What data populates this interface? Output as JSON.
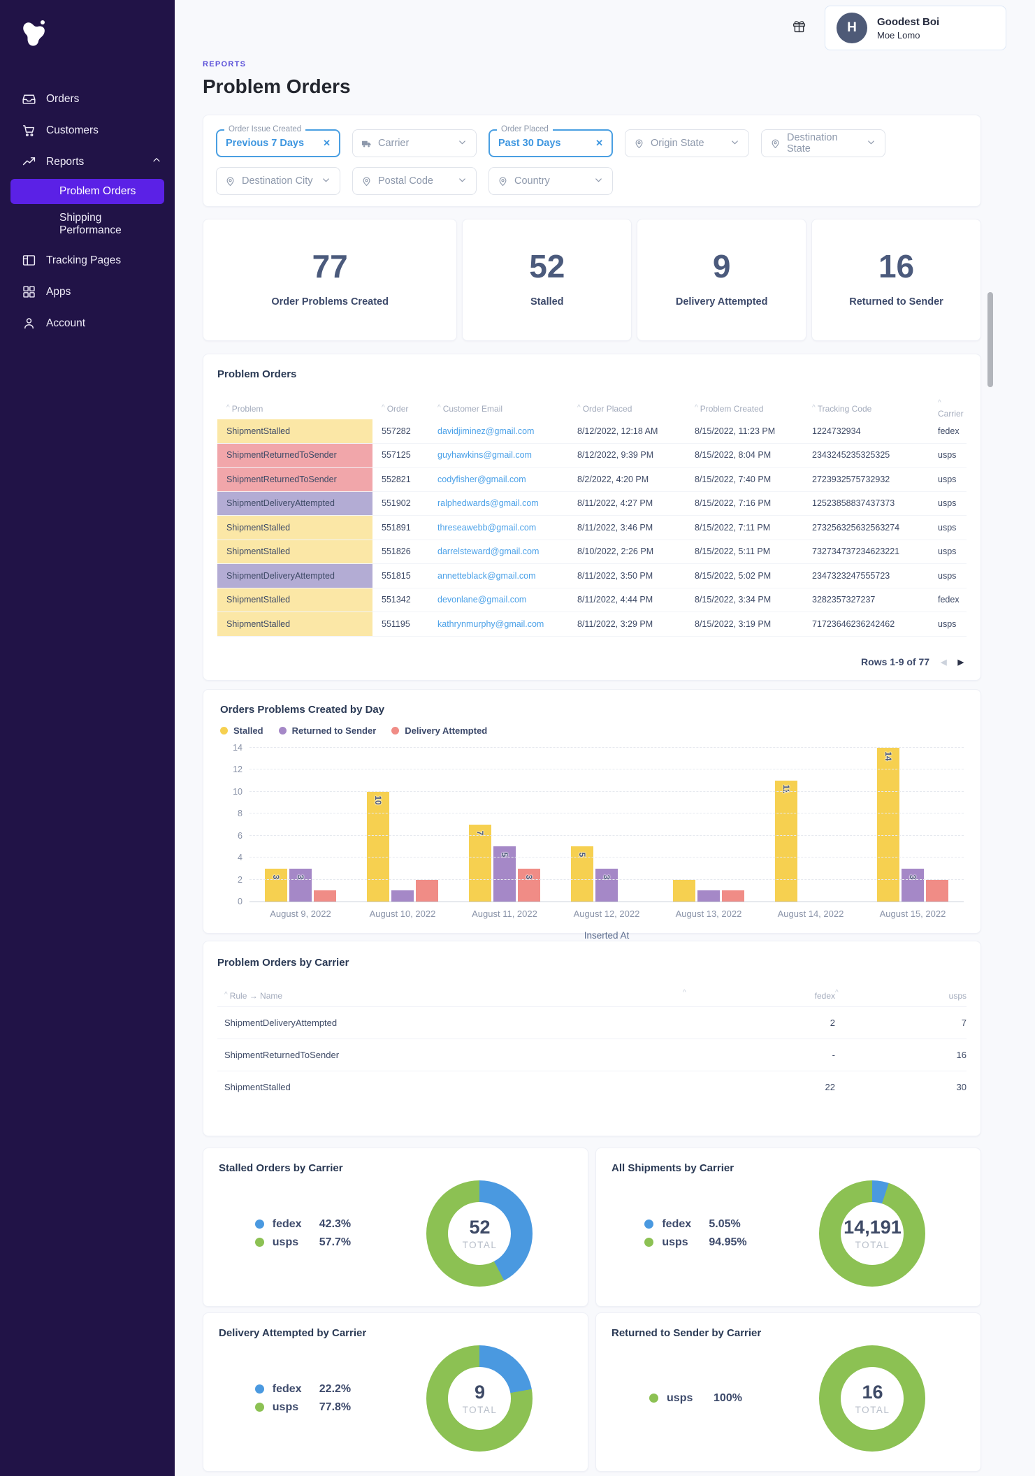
{
  "sidebar": {
    "items": [
      {
        "label": "Orders",
        "icon": "inbox-icon"
      },
      {
        "label": "Customers",
        "icon": "cart-icon"
      },
      {
        "label": "Reports",
        "icon": "trend-icon",
        "expanded": true
      },
      {
        "label": "Problem Orders",
        "child": true,
        "active": true
      },
      {
        "label": "Shipping Performance",
        "child": true
      },
      {
        "label": "Tracking Pages",
        "icon": "layout-icon"
      },
      {
        "label": "Apps",
        "icon": "grid-icon"
      },
      {
        "label": "Account",
        "icon": "user-icon"
      }
    ]
  },
  "header": {
    "breadcrumb": "REPORTS",
    "title": "Problem Orders",
    "user_name": "Goodest Boi",
    "user_subtitle": "Moe Lomo",
    "avatar_initial": "H"
  },
  "filters": {
    "rows": [
      [
        {
          "label": "Previous 7 Days",
          "legend": "Order Issue Created",
          "active": true
        },
        {
          "label": "Carrier",
          "icon": "truck-icon"
        },
        {
          "label": "Past 30 Days",
          "legend": "Order Placed",
          "active": true
        },
        {
          "label": "Origin State",
          "icon": "pin-icon"
        },
        {
          "label": "Destination State",
          "icon": "pin-icon"
        }
      ],
      [
        {
          "label": "Destination City",
          "icon": "pin-icon"
        },
        {
          "label": "Postal Code",
          "icon": "pin-icon"
        },
        {
          "label": "Country",
          "icon": "pin-icon"
        }
      ]
    ]
  },
  "stats": [
    {
      "value": "77",
      "label": "Order Problems Created"
    },
    {
      "value": "52",
      "label": "Stalled"
    },
    {
      "value": "9",
      "label": "Delivery Attempted"
    },
    {
      "value": "16",
      "label": "Returned to Sender"
    }
  ],
  "problem_table": {
    "title": "Problem Orders",
    "columns": [
      "Problem",
      "Order",
      "Customer Email",
      "Order Placed",
      "Problem Created",
      "Tracking Code",
      "Carrier"
    ],
    "rows": [
      {
        "problem": "ShipmentStalled",
        "type": "stalled",
        "order": "557282",
        "email": "davidjiminez@gmail.com",
        "placed": "8/12/2022, 12:18 AM",
        "created": "8/15/2022, 11:23 PM",
        "tracking": "1224732934",
        "carrier": "fedex"
      },
      {
        "problem": "ShipmentReturnedToSender",
        "type": "returned",
        "order": "557125",
        "email": "guyhawkins@gmail.com",
        "placed": "8/12/2022, 9:39 PM",
        "created": "8/15/2022, 8:04 PM",
        "tracking": "2343245235325325",
        "carrier": "usps"
      },
      {
        "problem": "ShipmentReturnedToSender",
        "type": "returned",
        "order": "552821",
        "email": "codyfisher@gmail.com",
        "placed": "8/2/2022, 4:20 PM",
        "created": "8/15/2022, 7:40 PM",
        "tracking": "2723932575732932",
        "carrier": "usps"
      },
      {
        "problem": "ShipmentDeliveryAttempted",
        "type": "attempted",
        "order": "551902",
        "email": "ralphedwards@gmail.com",
        "placed": "8/11/2022, 4:27 PM",
        "created": "8/15/2022, 7:16 PM",
        "tracking": "12523858837437373",
        "carrier": "usps"
      },
      {
        "problem": "ShipmentStalled",
        "type": "stalled",
        "order": "551891",
        "email": "threseawebb@gmail.com",
        "placed": "8/11/2022, 3:46 PM",
        "created": "8/15/2022, 7:11 PM",
        "tracking": "273256325632563274",
        "carrier": "usps"
      },
      {
        "problem": "ShipmentStalled",
        "type": "stalled",
        "order": "551826",
        "email": "darrelsteward@gmail.com",
        "placed": "8/10/2022, 2:26 PM",
        "created": "8/15/2022, 5:11 PM",
        "tracking": "732734737234623221",
        "carrier": "usps"
      },
      {
        "problem": "ShipmentDeliveryAttempted",
        "type": "attempted",
        "order": "551815",
        "email": "annetteblack@gmail.com",
        "placed": "8/11/2022, 3:50 PM",
        "created": "8/15/2022, 5:02 PM",
        "tracking": "2347323247555723",
        "carrier": "usps"
      },
      {
        "problem": "ShipmentStalled",
        "type": "stalled",
        "order": "551342",
        "email": "devonlane@gmail.com",
        "placed": "8/11/2022, 4:44 PM",
        "created": "8/15/2022, 3:34 PM",
        "tracking": "3282357327237",
        "carrier": "fedex"
      },
      {
        "problem": "ShipmentStalled",
        "type": "stalled",
        "order": "551195",
        "email": "kathrynmurphy@gmail.com",
        "placed": "8/11/2022, 3:29 PM",
        "created": "8/15/2022, 3:19 PM",
        "tracking": "71723646236242462",
        "carrier": "usps"
      }
    ],
    "pagination": "Rows 1-9 of 77",
    "prev_arrow": "◀",
    "next_arrow": "▶"
  },
  "chart_data": [
    {
      "type": "bar",
      "title": "Orders Problems Created by Day",
      "xlabel": "Inserted At",
      "ylim": [
        0,
        14
      ],
      "yticks": [
        0,
        2,
        4,
        6,
        8,
        10,
        12,
        14
      ],
      "grid": "dashed-horizontal",
      "legend_position": "top-left",
      "show_label_min": 3,
      "categories": [
        "August 9, 2022",
        "August 10, 2022",
        "August 11, 2022",
        "August 12, 2022",
        "August 13, 2022",
        "August 14, 2022",
        "August 15, 2022"
      ],
      "series": [
        {
          "name": "Stalled",
          "color": "#f6d050",
          "values": [
            3,
            10,
            7,
            5,
            2,
            11,
            14
          ]
        },
        {
          "name": "Returned to Sender",
          "color": "#a588c7",
          "values": [
            3,
            1,
            5,
            3,
            1,
            0,
            3
          ]
        },
        {
          "name": "Delivery Attempted",
          "color": "#f08c86",
          "values": [
            1,
            2,
            3,
            0,
            1,
            0,
            2
          ]
        }
      ]
    },
    {
      "type": "pie",
      "title": "Stalled Orders by Carrier",
      "total": "52",
      "segments": [
        {
          "name": "fedex",
          "pct": "42.3%",
          "value": 42.3,
          "color": "#4a99e0"
        },
        {
          "name": "usps",
          "pct": "57.7%",
          "value": 57.7,
          "color": "#8cc153"
        }
      ]
    },
    {
      "type": "pie",
      "title": "All Shipments by Carrier",
      "total": "14,191",
      "segments": [
        {
          "name": "fedex",
          "pct": "5.05%",
          "value": 5.05,
          "color": "#4a99e0"
        },
        {
          "name": "usps",
          "pct": "94.95%",
          "value": 94.95,
          "color": "#8cc153"
        }
      ]
    },
    {
      "type": "pie",
      "title": "Delivery Attempted by Carrier",
      "total": "9",
      "segments": [
        {
          "name": "fedex",
          "pct": "22.2%",
          "value": 22.2,
          "color": "#4a99e0"
        },
        {
          "name": "usps",
          "pct": "77.8%",
          "value": 77.8,
          "color": "#8cc153"
        }
      ]
    },
    {
      "type": "pie",
      "title": "Returned to Sender by Carrier",
      "total": "16",
      "segments": [
        {
          "name": "usps",
          "pct": "100%",
          "value": 100,
          "color": "#8cc153"
        }
      ]
    }
  ],
  "carrier_table": {
    "title": "Problem Orders by Carrier",
    "name_column": "Rule → Name",
    "value_columns": [
      "fedex",
      "usps"
    ],
    "rows": [
      {
        "name": "ShipmentDeliveryAttempted",
        "fedex": "2",
        "usps": "7"
      },
      {
        "name": "ShipmentReturnedToSender",
        "fedex": "-",
        "usps": "16"
      },
      {
        "name": "ShipmentStalled",
        "fedex": "22",
        "usps": "30"
      }
    ]
  },
  "donut_label": "TOTAL"
}
